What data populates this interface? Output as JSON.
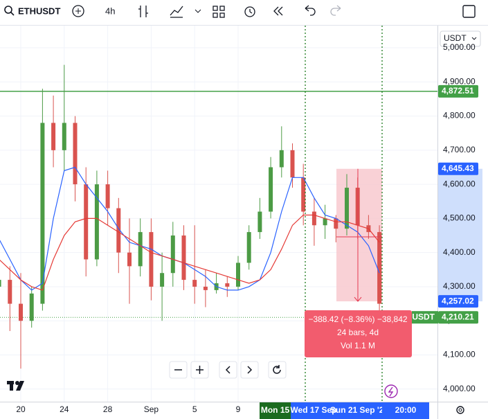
{
  "toolbar": {
    "symbol": "ETHUSDT",
    "interval": "4h"
  },
  "currency": "USDT",
  "chart_data": {
    "type": "candlestick",
    "x": [
      -2,
      -1,
      0,
      1,
      2,
      3,
      4,
      5,
      6,
      7,
      8,
      9,
      10,
      11,
      12,
      13,
      14,
      15,
      16,
      17,
      18,
      19,
      20,
      21,
      22,
      23,
      24,
      25,
      26,
      27,
      28,
      29,
      30,
      31,
      32,
      33
    ],
    "open": [
      4300,
      4320,
      4250,
      4200,
      4250,
      4780,
      4700,
      4780,
      4600,
      4380,
      4600,
      4530,
      4400,
      4360,
      4460,
      4300,
      4340,
      4450,
      4320,
      4300,
      4290,
      4310,
      4300,
      4370,
      4460,
      4520,
      4650,
      4700,
      4620,
      4520,
      4480,
      4500,
      4470,
      4590,
      4480,
      4460
    ],
    "high": [
      4380,
      4360,
      4340,
      4300,
      4880,
      4860,
      4950,
      4800,
      4650,
      4640,
      4640,
      4560,
      4500,
      4500,
      4500,
      4400,
      4490,
      4480,
      4480,
      4350,
      4340,
      4330,
      4390,
      4480,
      4560,
      4680,
      4770,
      4720,
      4660,
      4560,
      4540,
      4510,
      4630,
      4620,
      4510,
      4480
    ],
    "low": [
      4230,
      4170,
      4060,
      4180,
      4230,
      4650,
      4640,
      4550,
      4330,
      4360,
      4480,
      4340,
      4250,
      4330,
      4260,
      4200,
      4300,
      4290,
      4250,
      4240,
      4280,
      4270,
      4290,
      4350,
      4440,
      4500,
      4620,
      4590,
      4480,
      4420,
      4440,
      4430,
      4450,
      4440,
      4440,
      4200
    ],
    "close": [
      4320,
      4250,
      4200,
      4280,
      4780,
      4700,
      4780,
      4600,
      4380,
      4600,
      4530,
      4400,
      4360,
      4460,
      4300,
      4340,
      4450,
      4320,
      4300,
      4290,
      4310,
      4300,
      4370,
      4460,
      4520,
      4650,
      4700,
      4620,
      4520,
      4480,
      4500,
      4470,
      4590,
      4480,
      4460,
      4250
    ],
    "up_color": "#4c9b45",
    "down_color": "#d9534f",
    "series": [
      {
        "color": "#2962ff",
        "values": [
          4440,
          4380,
          4320,
          4290,
          4310,
          4500,
          4640,
          4650,
          4600,
          4560,
          4520,
          4470,
          4430,
          4420,
          4410,
          4390,
          4380,
          4370,
          4350,
          4330,
          4300,
          4290,
          4290,
          4300,
          4320,
          4400,
          4520,
          4620,
          4620,
          4560,
          4510,
          4500,
          4480,
          4460,
          4420,
          4340
        ]
      },
      {
        "color": "#e53935",
        "values": [
          4380,
          4350,
          4320,
          4300,
          4290,
          4380,
          4450,
          4490,
          4500,
          4500,
          4480,
          4460,
          4440,
          4420,
          4400,
          4390,
          4380,
          4370,
          4360,
          4350,
          4340,
          4330,
          4320,
          4310,
          4320,
          4350,
          4410,
          4480,
          4510,
          4510,
          4500,
          4490,
          4490,
          4480,
          4470,
          4430
        ]
      }
    ],
    "ylim": [
      3963,
      5065
    ],
    "yticks": [
      {
        "value": 4000,
        "label": "4,000.00"
      },
      {
        "value": 4100,
        "label": "4,100.00"
      },
      {
        "value": 4200,
        "label": "4,200.00"
      },
      {
        "value": 4300,
        "label": "4,300.00"
      },
      {
        "value": 4400,
        "label": "4,400.00"
      },
      {
        "value": 4500,
        "label": "4,500.00"
      },
      {
        "value": 4600,
        "label": "4,600.00"
      },
      {
        "value": 4700,
        "label": "4,700.00"
      },
      {
        "value": 4800,
        "label": "4,800.00"
      },
      {
        "value": 4900,
        "label": "4,900.00"
      },
      {
        "value": 5000,
        "label": "5,000.00"
      }
    ],
    "xticks": [
      {
        "value": 0,
        "label": "20"
      },
      {
        "value": 4,
        "label": "24"
      },
      {
        "value": 8,
        "label": "28"
      },
      {
        "value": 12,
        "label": "Sep"
      },
      {
        "value": 16,
        "label": "5"
      },
      {
        "value": 20,
        "label": "9"
      }
    ],
    "price_badges": [
      {
        "value": 4872.51,
        "label": "4,872.51",
        "color": "#43a047"
      },
      {
        "value": 4645.43,
        "label": "4,645.43",
        "color": "#2962ff"
      },
      {
        "value": 4257.02,
        "label": "4,257.02",
        "color": "#2962ff"
      },
      {
        "value": 4210.21,
        "label": "4,210.21",
        "color": "#43a047"
      }
    ],
    "time_highlights": [
      "Mon 15",
      "Wed 17 Sep",
      "Sun 21 Sep '25",
      "20:00"
    ],
    "measure": {
      "change": "−388.42 (−8.36%) −38,842",
      "bars": "24 bars, 4d",
      "volume": "Vol 1.1 M"
    }
  }
}
